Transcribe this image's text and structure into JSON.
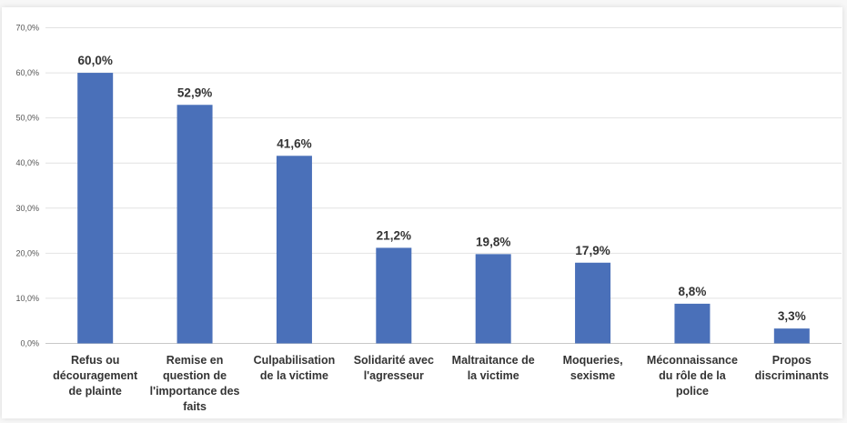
{
  "chart_data": {
    "type": "bar",
    "categories": [
      [
        "Refus ou",
        "découragement",
        "de plainte"
      ],
      [
        "Remise en",
        "question de",
        "l'importance des",
        "faits"
      ],
      [
        "Culpabilisation",
        "de la victime"
      ],
      [
        "Solidarité avec",
        "l'agresseur"
      ],
      [
        "Maltraitance de",
        "la victime"
      ],
      [
        "Moqueries,",
        "sexisme"
      ],
      [
        "Méconnaissance",
        "du rôle de la",
        "police"
      ],
      [
        "Propos",
        "discriminants"
      ]
    ],
    "values": [
      60.0,
      52.9,
      41.6,
      21.2,
      19.8,
      17.9,
      8.8,
      3.3
    ],
    "data_labels": [
      "60,0%",
      "52,9%",
      "41,6%",
      "21,2%",
      "19,8%",
      "17,9%",
      "8,8%",
      "3,3%"
    ],
    "yticks": [
      "0,0%",
      "10,0%",
      "20,0%",
      "30,0%",
      "40,0%",
      "50,0%",
      "60,0%",
      "70,0%"
    ],
    "ylim": [
      0,
      70
    ],
    "grid": true,
    "bar_color": "#4a70b9",
    "title": "",
    "xlabel": "",
    "ylabel": ""
  }
}
